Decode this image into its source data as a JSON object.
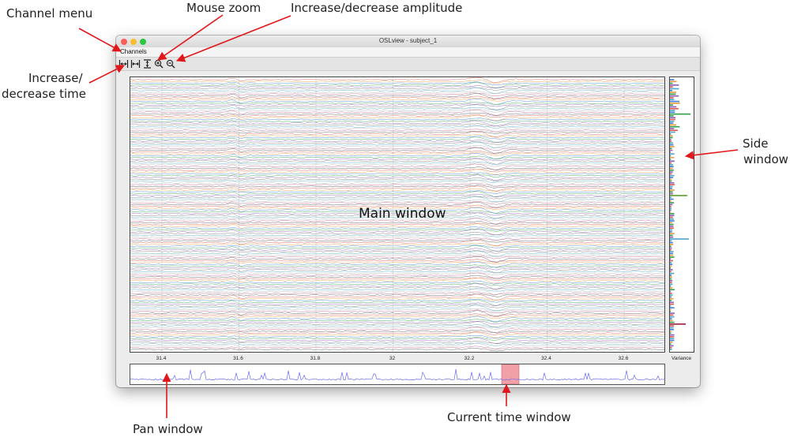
{
  "window": {
    "title": "OSLview - subject_1"
  },
  "menu": {
    "channels_label": "Channels"
  },
  "toolbar": {
    "tools": [
      "increase-time-icon",
      "decrease-time-icon",
      "increase-amplitude-icon",
      "zoom-in-icon",
      "zoom-out-icon"
    ]
  },
  "main_window": {
    "label": "Main window",
    "n_channels": 150
  },
  "x_axis": {
    "ticks": [
      "31.4",
      "31.6",
      "31.8",
      "32",
      "32.2",
      "32.4",
      "32.6"
    ]
  },
  "side_window": {
    "label": "Variance"
  },
  "callouts": {
    "channel_menu": "Channel menu",
    "mouse_zoom": "Mouse zoom",
    "amplitude": "Increase/decrease amplitude",
    "time_line1": "Increase/",
    "time_line2": "decrease time",
    "side_line1": "Side",
    "side_line2": "window",
    "pan_window": "Pan window",
    "current_time": "Current time window"
  },
  "colors": {
    "annotation_arrow": "#e0181b",
    "pan_trace": "#6b6bf0",
    "current_window": "#f2a0a8"
  }
}
